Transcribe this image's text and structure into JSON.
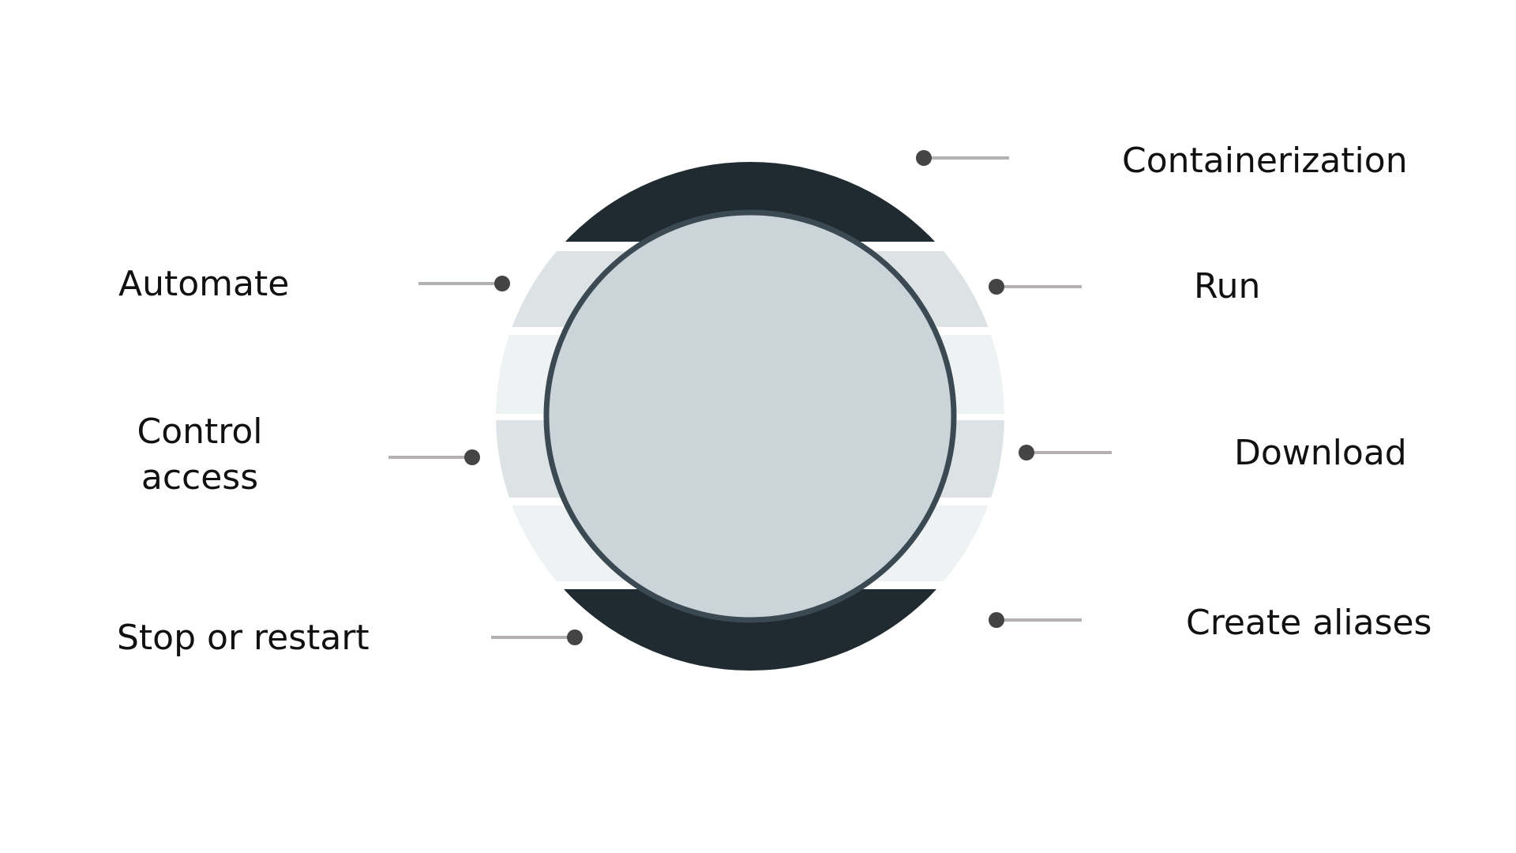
{
  "colors": {
    "background": "#ffffff",
    "ring_dark": "#1f2b31",
    "band_mid": "#dde3e5",
    "band_light": "#eef2f3",
    "inner_circle": "#cbd5d9",
    "inner_circle_border": "#3b4a52",
    "connector_line": "#b5b1b3",
    "connector_dot": "#444444",
    "label_text": "#111111"
  },
  "labels": {
    "containerization": "Containerization",
    "run": "Run",
    "download": "Download",
    "create_aliases": "Create aliases",
    "automate": "Automate",
    "control_access_line1": "Control",
    "control_access_line2": "access",
    "stop_or_restart": "Stop or restart"
  }
}
